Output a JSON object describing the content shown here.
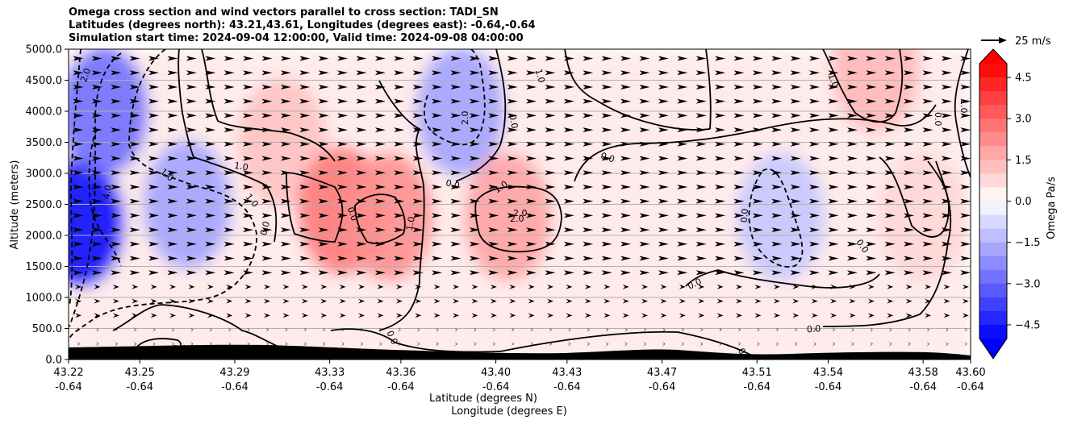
{
  "chart_data": {
    "type": "heatmap",
    "title_lines": [
      "Omega cross section and wind vectors parallel to cross section: TADI_SN",
      "Latitudes (degrees north): 43.21,43.61, Longitudes (degrees east): -0.64,-0.64",
      "Simulation start time: 2024-09-04 12:00:00, Valid time: 2024-09-08 04:00:00"
    ],
    "xlabel_lines": [
      "Latitude (degrees N)",
      "Longitude (degrees E)"
    ],
    "ylabel": "Altitude (meters)",
    "ylim": [
      0,
      5000
    ],
    "y_ticks": [
      "0.0",
      "500.0",
      "1000.0",
      "1500.0",
      "2000.0",
      "2500.0",
      "3000.0",
      "3500.0",
      "4000.0",
      "4500.0",
      "5000.0"
    ],
    "x_ticks": [
      {
        "lat": "43.22",
        "lon": "-0.64"
      },
      {
        "lat": "43.25",
        "lon": "-0.64"
      },
      {
        "lat": "43.29",
        "lon": "-0.64"
      },
      {
        "lat": "43.33",
        "lon": "-0.64"
      },
      {
        "lat": "43.36",
        "lon": "-0.64"
      },
      {
        "lat": "43.40",
        "lon": "-0.64"
      },
      {
        "lat": "43.43",
        "lon": "-0.64"
      },
      {
        "lat": "43.47",
        "lon": "-0.64"
      },
      {
        "lat": "43.51",
        "lon": "-0.64"
      },
      {
        "lat": "43.54",
        "lon": "-0.64"
      },
      {
        "lat": "43.58",
        "lon": "-0.64"
      },
      {
        "lat": "43.60",
        "lon": "-0.64"
      }
    ],
    "colorbar": {
      "label": "Omega Pa/s",
      "range": [
        -5,
        5
      ],
      "tick_labels": [
        "4.5",
        "3.0",
        "1.5",
        "0.0",
        "−1.5",
        "−3.0",
        "−4.5"
      ],
      "tick_values": [
        4.5,
        3.0,
        1.5,
        0.0,
        -1.5,
        -3.0,
        -4.5
      ],
      "colormap": "bwr",
      "positive_color": "#ff0000",
      "negative_color": "#0000ff"
    },
    "wind_reference": {
      "label": "25 m/s"
    },
    "grid": "horizontal",
    "omega_field_approx": [
      {
        "lat": 43.225,
        "alt": 2200,
        "omega": -4.8
      },
      {
        "lat": 43.235,
        "alt": 4000,
        "omega": -2.8
      },
      {
        "lat": 43.27,
        "alt": 2500,
        "omega": -1.8
      },
      {
        "lat": 43.31,
        "alt": 3500,
        "omega": 1.2
      },
      {
        "lat": 43.335,
        "alt": 2400,
        "omega": 2.6
      },
      {
        "lat": 43.355,
        "alt": 2300,
        "omega": 2.2
      },
      {
        "lat": 43.385,
        "alt": 4000,
        "omega": -1.8
      },
      {
        "lat": 43.405,
        "alt": 2300,
        "omega": 1.8
      },
      {
        "lat": 43.52,
        "alt": 2300,
        "omega": -1.1
      },
      {
        "lat": 43.56,
        "alt": 4700,
        "omega": 1.4
      },
      {
        "lat": 43.58,
        "alt": 2300,
        "omega": 0.8
      }
    ],
    "contour_labels": [
      "2.0",
      "1.0",
      "4.0",
      "0.0",
      "1.0",
      "1.0",
      "0.0",
      "1.0",
      "2.0",
      "0.0",
      "1.0",
      "2.0",
      "2.0",
      "0.0",
      "0.0",
      "1.0",
      "1.0",
      "0.0",
      "0.0",
      "1.0",
      "0.0",
      "0.0",
      "0.0",
      "0.0",
      "0.0",
      "0.0"
    ]
  }
}
